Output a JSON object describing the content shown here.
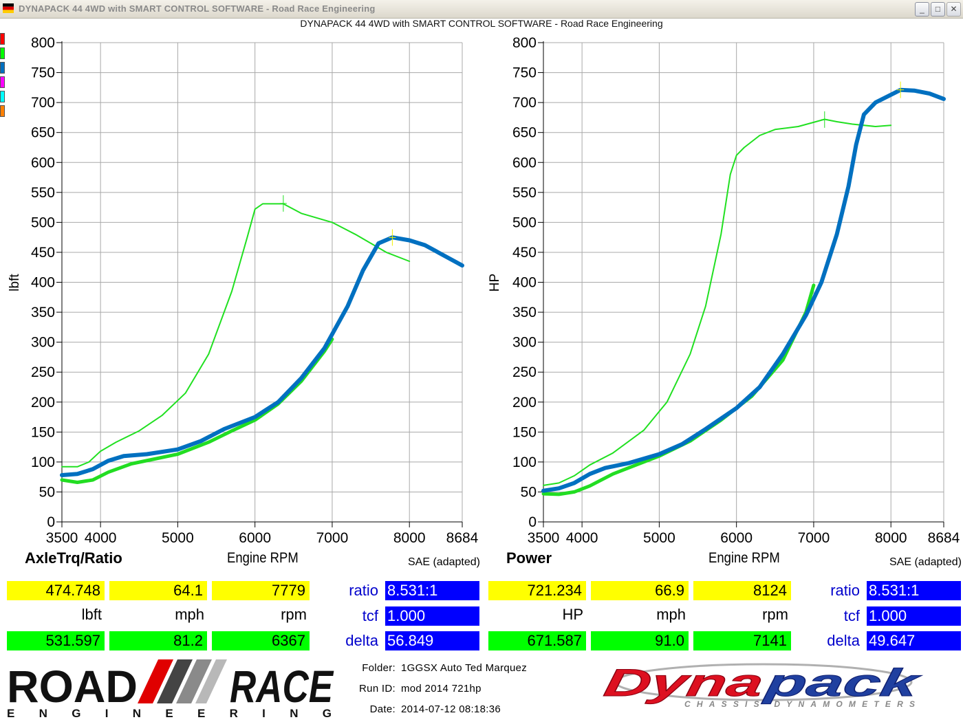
{
  "window": {
    "title": "DYNAPACK 44 4WD with SMART CONTROL SOFTWARE - Road Race Engineering",
    "buttons": {
      "minimize": "_",
      "maximize": "□",
      "close": "✕"
    }
  },
  "subtitle": "DYNAPACK 44 4WD with SMART CONTROL SOFTWARE - Road Race Engineering",
  "legend_swatches": [
    "#ff0000",
    "#00ff00",
    "#0070c0",
    "#ff00ff",
    "#00ffff",
    "#ff8000"
  ],
  "left_panel": {
    "name": "AxleTrq/Ratio",
    "xlabel": "Engine RPM",
    "ylabel": "lbft",
    "correction": "SAE (adapted)",
    "current": {
      "value": "474.748",
      "mph": "64.1",
      "rpm": "7779"
    },
    "units": {
      "value": "lbft",
      "mph": "mph",
      "rpm": "rpm"
    },
    "peak": {
      "value": "531.597",
      "mph": "81.2",
      "rpm": "6367"
    },
    "params": {
      "ratio_label": "ratio",
      "ratio": "8.531:1",
      "tcf_label": "tcf",
      "tcf": "1.000",
      "delta_label": "delta",
      "delta": "56.849"
    }
  },
  "right_panel": {
    "name": "Power",
    "xlabel": "Engine RPM",
    "ylabel": "HP",
    "correction": "SAE (adapted)",
    "current": {
      "value": "721.234",
      "mph": "66.9",
      "rpm": "8124"
    },
    "units": {
      "value": "HP",
      "mph": "mph",
      "rpm": "rpm"
    },
    "peak": {
      "value": "671.587",
      "mph": "91.0",
      "rpm": "7141"
    },
    "params": {
      "ratio_label": "ratio",
      "ratio": "8.531:1",
      "tcf_label": "tcf",
      "tcf": "1.000",
      "delta_label": "delta",
      "delta": "49.647"
    }
  },
  "info": {
    "folder_label": "Folder:",
    "folder": "1GGSX Auto Ted Marquez",
    "runid_label": "Run ID:",
    "runid": "mod 2014 721hp",
    "date_label": "Date:",
    "date": "2014-07-12 08:18:36"
  },
  "logos": {
    "road_race": {
      "top": "ROAD",
      "top2": "RACE",
      "bottom": "ENGINEERING"
    },
    "dynapack": {
      "name": "Dynapack",
      "tagline": "CHASSIS DYNAMOMETERS"
    }
  },
  "chart_data": [
    {
      "type": "line",
      "title": "AxleTrq/Ratio",
      "xlabel": "Engine RPM",
      "ylabel": "lbft",
      "xlim": [
        3500,
        8684
      ],
      "ylim": [
        0,
        800
      ],
      "x_ticks": [
        3500,
        4000,
        5000,
        6000,
        7000,
        8000,
        8684
      ],
      "y_ticks": [
        0,
        50,
        100,
        150,
        200,
        250,
        300,
        350,
        400,
        450,
        500,
        550,
        600,
        650,
        700,
        750,
        800
      ],
      "grid": true,
      "series": [
        {
          "color": "#20e020",
          "width": 2,
          "points": [
            [
              3500,
              92
            ],
            [
              3700,
              92
            ],
            [
              3850,
              100
            ],
            [
              4000,
              118
            ],
            [
              4200,
              133
            ],
            [
              4500,
              152
            ],
            [
              4800,
              178
            ],
            [
              5100,
              215
            ],
            [
              5400,
              280
            ],
            [
              5700,
              385
            ],
            [
              5900,
              475
            ],
            [
              6000,
              522
            ],
            [
              6100,
              531
            ],
            [
              6367,
              531
            ],
            [
              6600,
              515
            ],
            [
              7000,
              500
            ],
            [
              7300,
              480
            ],
            [
              7700,
              450
            ],
            [
              8000,
              435
            ]
          ]
        },
        {
          "color": "#22dd22",
          "width": 5,
          "points": [
            [
              3500,
              70
            ],
            [
              3700,
              66
            ],
            [
              3900,
              70
            ],
            [
              4100,
              83
            ],
            [
              4400,
              97
            ],
            [
              4700,
              105
            ],
            [
              5000,
              113
            ],
            [
              5400,
              133
            ],
            [
              5700,
              152
            ],
            [
              6000,
              170
            ],
            [
              6300,
              197
            ],
            [
              6600,
              235
            ],
            [
              6900,
              285
            ],
            [
              7000,
              305
            ]
          ]
        },
        {
          "color": "#0070c0",
          "width": 6,
          "points": [
            [
              3500,
              78
            ],
            [
              3700,
              80
            ],
            [
              3900,
              88
            ],
            [
              4100,
              102
            ],
            [
              4300,
              110
            ],
            [
              4600,
              113
            ],
            [
              5000,
              121
            ],
            [
              5300,
              135
            ],
            [
              5600,
              155
            ],
            [
              6000,
              175
            ],
            [
              6300,
              200
            ],
            [
              6600,
              240
            ],
            [
              6900,
              290
            ],
            [
              7200,
              360
            ],
            [
              7400,
              420
            ],
            [
              7600,
              465
            ],
            [
              7779,
              475
            ],
            [
              8000,
              470
            ],
            [
              8200,
              462
            ],
            [
              8400,
              448
            ],
            [
              8684,
              428
            ]
          ]
        }
      ],
      "markers": [
        {
          "rpm": 6367,
          "value": 531.597,
          "color": "#20e020"
        },
        {
          "rpm": 7779,
          "value": 474.748,
          "color": "#f0f000"
        }
      ]
    },
    {
      "type": "line",
      "title": "Power",
      "xlabel": "Engine RPM",
      "ylabel": "HP",
      "xlim": [
        3500,
        8684
      ],
      "ylim": [
        0,
        800
      ],
      "x_ticks": [
        3500,
        4000,
        5000,
        6000,
        7000,
        8000,
        8684
      ],
      "y_ticks": [
        0,
        50,
        100,
        150,
        200,
        250,
        300,
        350,
        400,
        450,
        500,
        550,
        600,
        650,
        700,
        750,
        800
      ],
      "grid": true,
      "series": [
        {
          "color": "#20e020",
          "width": 2,
          "points": [
            [
              3500,
              61
            ],
            [
              3700,
              65
            ],
            [
              3900,
              77
            ],
            [
              4100,
              95
            ],
            [
              4400,
              115
            ],
            [
              4800,
              153
            ],
            [
              5100,
              200
            ],
            [
              5400,
              280
            ],
            [
              5600,
              360
            ],
            [
              5800,
              480
            ],
            [
              5920,
              580
            ],
            [
              6000,
              612
            ],
            [
              6100,
              625
            ],
            [
              6300,
              645
            ],
            [
              6500,
              655
            ],
            [
              6800,
              660
            ],
            [
              7000,
              667
            ],
            [
              7141,
              672
            ],
            [
              7300,
              668
            ],
            [
              7500,
              664
            ],
            [
              7800,
              660
            ],
            [
              8000,
              662
            ]
          ]
        },
        {
          "color": "#22dd22",
          "width": 5,
          "points": [
            [
              3500,
              47
            ],
            [
              3700,
              46
            ],
            [
              3900,
              50
            ],
            [
              4100,
              60
            ],
            [
              4400,
              80
            ],
            [
              4700,
              95
            ],
            [
              5000,
              110
            ],
            [
              5400,
              135
            ],
            [
              5800,
              170
            ],
            [
              6200,
              210
            ],
            [
              6600,
              270
            ],
            [
              6900,
              350
            ],
            [
              7000,
              395
            ]
          ]
        },
        {
          "color": "#0070c0",
          "width": 6,
          "points": [
            [
              3500,
              52
            ],
            [
              3700,
              56
            ],
            [
              3900,
              65
            ],
            [
              4100,
              80
            ],
            [
              4300,
              90
            ],
            [
              4600,
              98
            ],
            [
              5000,
              113
            ],
            [
              5300,
              130
            ],
            [
              5600,
              155
            ],
            [
              6000,
              190
            ],
            [
              6300,
              225
            ],
            [
              6600,
              280
            ],
            [
              6900,
              345
            ],
            [
              7100,
              400
            ],
            [
              7300,
              480
            ],
            [
              7450,
              560
            ],
            [
              7550,
              630
            ],
            [
              7650,
              680
            ],
            [
              7800,
              700
            ],
            [
              8000,
              713
            ],
            [
              8124,
              721
            ],
            [
              8300,
              720
            ],
            [
              8500,
              715
            ],
            [
              8684,
              706
            ]
          ]
        }
      ],
      "markers": [
        {
          "rpm": 7141,
          "value": 671.587,
          "color": "#20e020"
        },
        {
          "rpm": 8124,
          "value": 721.234,
          "color": "#f0f000"
        }
      ]
    }
  ]
}
